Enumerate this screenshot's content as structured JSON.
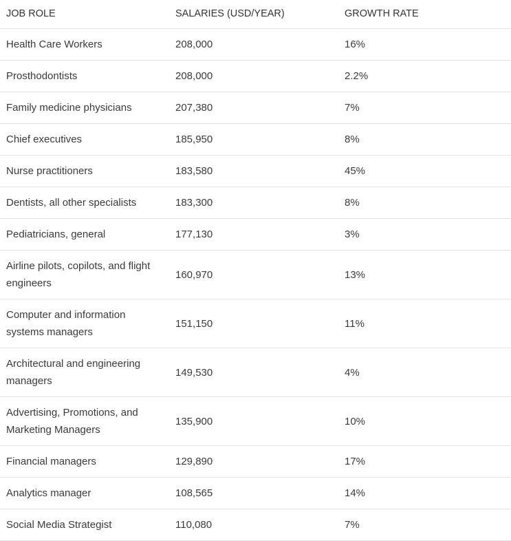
{
  "table": {
    "header": [
      "JOB ROLE",
      "SALARIES (USD/YEAR)",
      "GROWTH RATE"
    ],
    "rows": [
      [
        "Health Care Workers",
        "208,000",
        "16%"
      ],
      [
        "Prosthodontists",
        "208,000",
        "2.2%"
      ],
      [
        "Family medicine physicians",
        "207,380",
        "7%"
      ],
      [
        "Chief executives",
        "185,950",
        "8%"
      ],
      [
        "Nurse practitioners",
        "183,580",
        "45%"
      ],
      [
        "Dentists, all other specialists",
        "183,300",
        "8%"
      ],
      [
        "Pediatricians, general",
        "177,130",
        "3%"
      ],
      [
        "Airline pilots, copilots, and flight engineers",
        "160,970",
        "13%"
      ],
      [
        "Computer and information systems managers",
        "151,150",
        "11%"
      ],
      [
        "Architectural and engineering managers",
        "149,530",
        "4%"
      ],
      [
        "Advertising, Promotions, and Marketing Managers",
        "135,900",
        "10%"
      ],
      [
        "Financial managers",
        "129,890",
        "17%"
      ],
      [
        "Analytics manager",
        "108,565",
        "14%"
      ],
      [
        "Social Media Strategist",
        "110,080",
        "7%"
      ]
    ]
  }
}
